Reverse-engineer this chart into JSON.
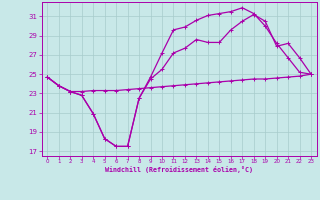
{
  "background_color": "#c8e8e8",
  "grid_color": "#a8cccc",
  "line_color": "#aa00aa",
  "xlim": [
    -0.5,
    23.5
  ],
  "ylim": [
    16.5,
    32.5
  ],
  "xticks": [
    0,
    1,
    2,
    3,
    4,
    5,
    6,
    7,
    8,
    9,
    10,
    11,
    12,
    13,
    14,
    15,
    16,
    17,
    18,
    19,
    20,
    21,
    22,
    23
  ],
  "yticks": [
    17,
    19,
    21,
    23,
    25,
    27,
    29,
    31
  ],
  "xlabel": "Windchill (Refroidissement éolien,°C)",
  "line1": [
    24.7,
    23.8,
    23.2,
    23.2,
    23.3,
    23.3,
    23.3,
    23.4,
    23.5,
    23.6,
    23.7,
    23.8,
    23.9,
    24.0,
    24.1,
    24.2,
    24.3,
    24.4,
    24.5,
    24.5,
    24.6,
    24.7,
    24.8,
    25.0
  ],
  "line2": [
    24.7,
    23.8,
    23.2,
    22.8,
    20.9,
    18.3,
    17.5,
    17.5,
    22.5,
    24.7,
    27.2,
    29.6,
    29.9,
    30.6,
    31.1,
    31.3,
    31.5,
    31.9,
    31.3,
    30.0,
    28.2,
    26.7,
    25.2,
    25.0
  ],
  "line3": [
    24.7,
    23.8,
    23.2,
    22.8,
    20.9,
    18.3,
    17.5,
    17.5,
    22.5,
    24.5,
    25.5,
    27.2,
    27.7,
    28.6,
    28.3,
    28.3,
    29.6,
    30.5,
    31.2,
    30.5,
    27.9,
    28.2,
    26.7,
    25.0
  ]
}
